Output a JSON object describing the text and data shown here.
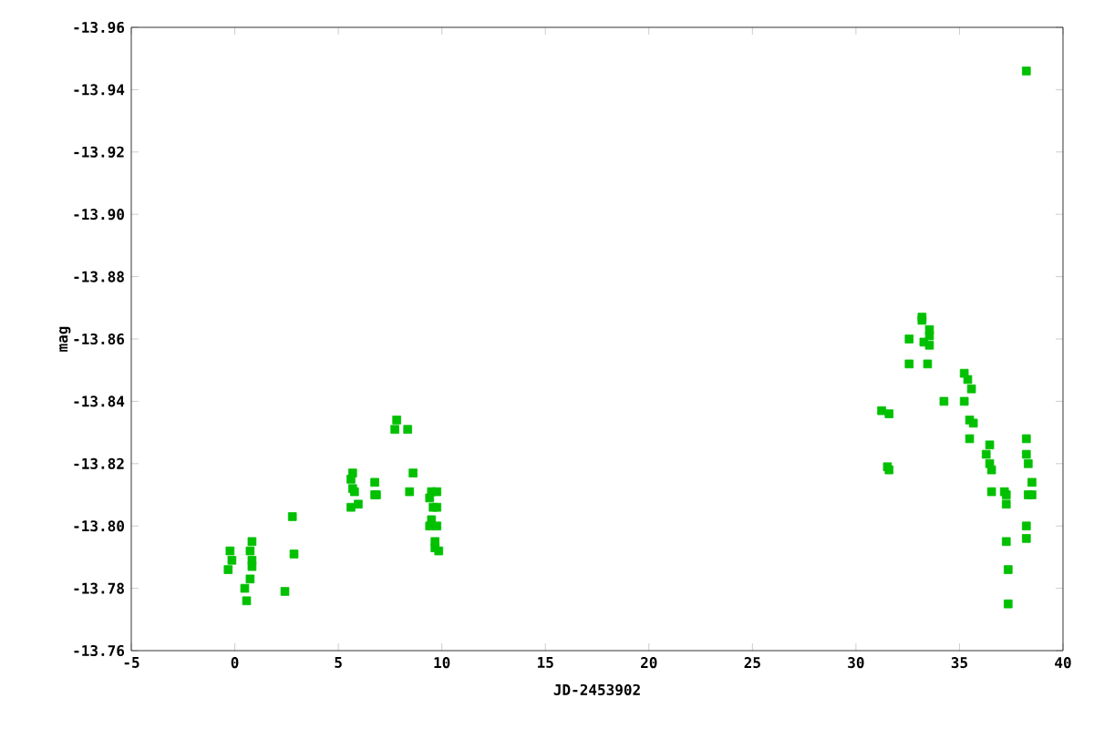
{
  "chart_data": {
    "type": "scatter",
    "xlabel": "JD-2453902",
    "ylabel": "mag",
    "x": [
      -0.23,
      -0.14,
      -0.32,
      0.48,
      0.57,
      0.74,
      0.83,
      0.74,
      0.83,
      0.83,
      2.42,
      2.78,
      2.86,
      5.61,
      5.69,
      5.61,
      5.96,
      5.69,
      5.78,
      6.76,
      6.76,
      6.84,
      7.82,
      7.73,
      8.35,
      8.61,
      8.44,
      9.5,
      9.76,
      9.41,
      9.58,
      9.76,
      9.5,
      9.41,
      9.76,
      9.67,
      9.67,
      9.85,
      31.24,
      31.6,
      31.52,
      31.6,
      32.57,
      32.57,
      33.19,
      33.19,
      33.55,
      33.28,
      33.55,
      33.55,
      33.46,
      34.25,
      35.23,
      35.4,
      35.58,
      35.23,
      35.49,
      35.67,
      35.49,
      36.46,
      36.29,
      36.46,
      36.55,
      36.55,
      37.17,
      37.26,
      37.26,
      37.26,
      37.35,
      37.35,
      38.23,
      38.23,
      38.32,
      38.5,
      38.5,
      38.32,
      38.23,
      38.23,
      38.23
    ],
    "values": [
      -13.792,
      -13.789,
      -13.786,
      -13.78,
      -13.776,
      -13.783,
      -13.795,
      -13.792,
      -13.787,
      -13.789,
      -13.779,
      -13.803,
      -13.791,
      -13.815,
      -13.812,
      -13.806,
      -13.807,
      -13.817,
      -13.811,
      -13.814,
      -13.81,
      -13.81,
      -13.834,
      -13.831,
      -13.831,
      -13.817,
      -13.811,
      -13.811,
      -13.811,
      -13.809,
      -13.806,
      -13.806,
      -13.802,
      -13.8,
      -13.8,
      -13.795,
      -13.793,
      -13.792,
      -13.837,
      -13.836,
      -13.819,
      -13.818,
      -13.86,
      -13.852,
      -13.867,
      -13.866,
      -13.863,
      -13.859,
      -13.861,
      -13.858,
      -13.852,
      -13.84,
      -13.849,
      -13.847,
      -13.844,
      -13.84,
      -13.834,
      -13.833,
      -13.828,
      -13.826,
      -13.823,
      -13.82,
      -13.818,
      -13.811,
      -13.811,
      -13.81,
      -13.807,
      -13.795,
      -13.786,
      -13.775,
      -13.828,
      -13.823,
      -13.82,
      -13.814,
      -13.81,
      -13.81,
      -13.8,
      -13.796,
      -13.946
    ],
    "color": "#00c000",
    "marker": "square",
    "xlim": [
      -5,
      40
    ],
    "xticks": [
      -5,
      0,
      5,
      10,
      15,
      20,
      25,
      30,
      35,
      40
    ],
    "ylim": [
      -13.76,
      -13.96
    ],
    "yticks": [
      {
        "value": -13.96,
        "label": "-13.96"
      },
      {
        "value": -13.94,
        "label": "-13.94"
      },
      {
        "value": -13.92,
        "label": "-13.92"
      },
      {
        "value": -13.9,
        "label": "-13.90"
      },
      {
        "value": -13.88,
        "label": "-13.88"
      },
      {
        "value": -13.86,
        "label": "-13.86"
      },
      {
        "value": -13.84,
        "label": "-13.84"
      },
      {
        "value": -13.82,
        "label": "-13.82"
      },
      {
        "value": -13.8,
        "label": "-13.80"
      },
      {
        "value": -13.78,
        "label": "-13.78"
      },
      {
        "value": -13.76,
        "label": "-13.76"
      }
    ],
    "grid": false
  }
}
